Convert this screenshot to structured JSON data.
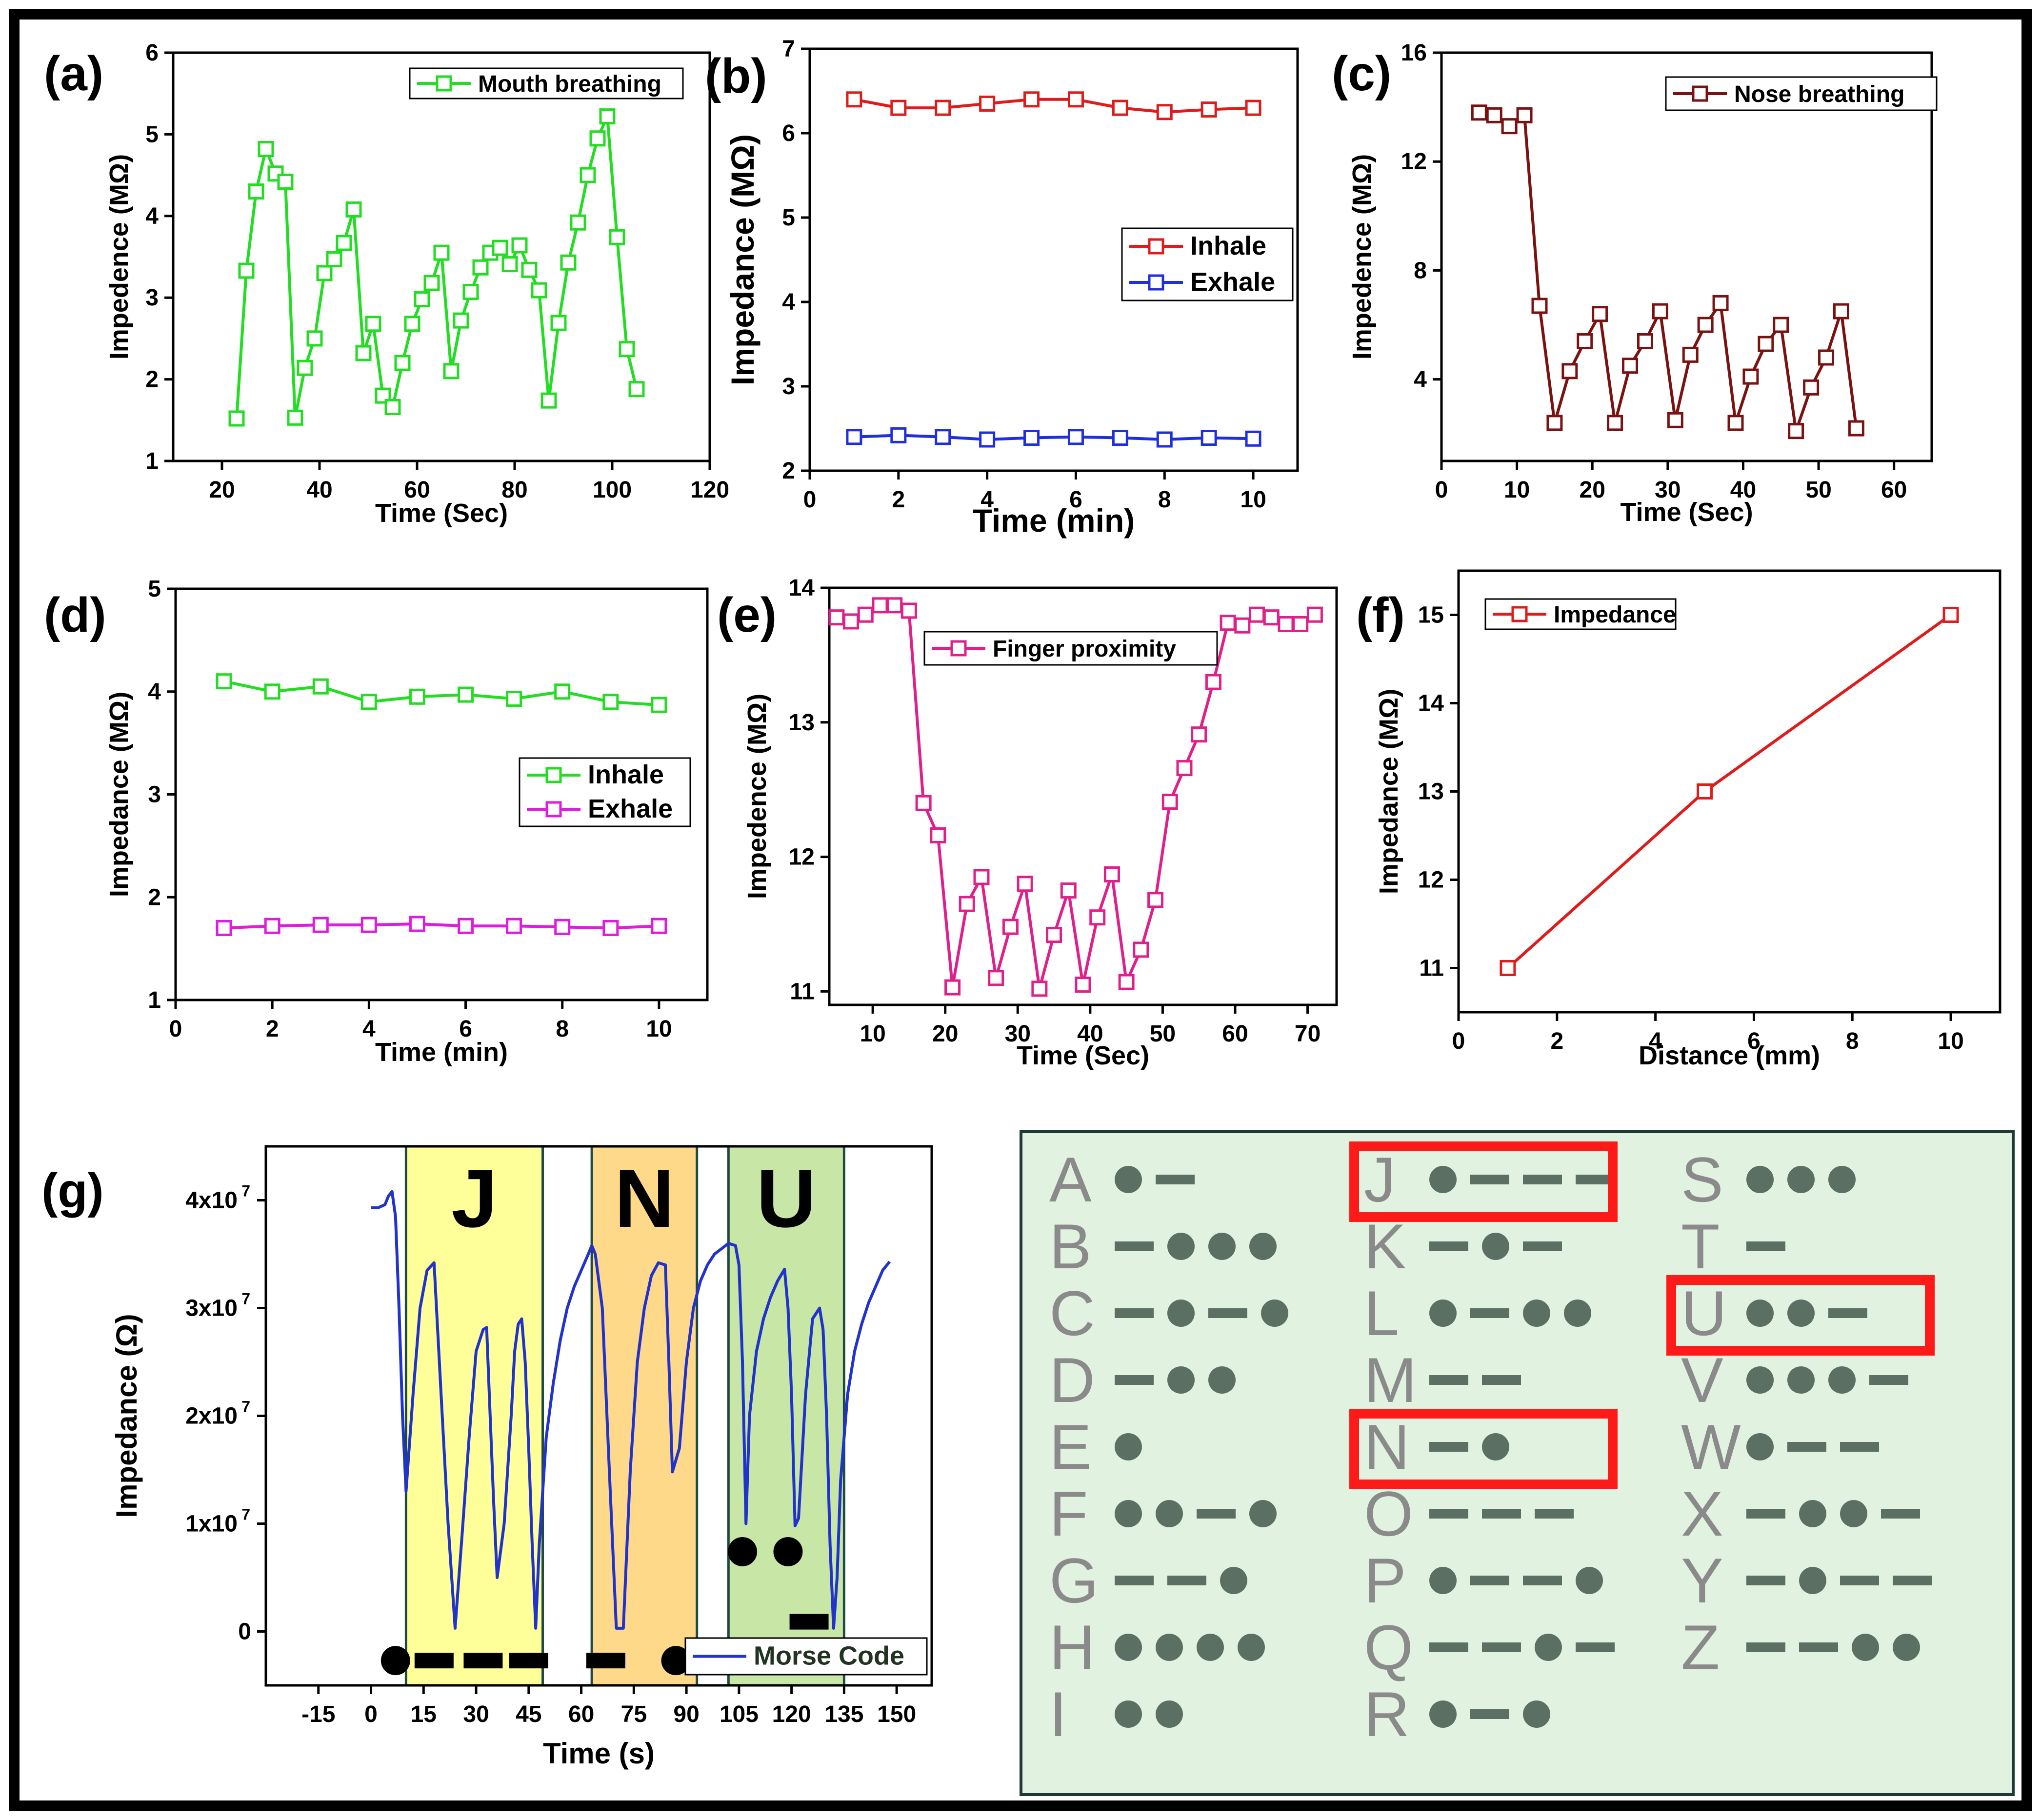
{
  "chart_data": [
    {
      "id": "a",
      "panel_label": "(a)",
      "type": "line",
      "xlabel": "Time (Sec)",
      "ylabel": "Impedence (MΩ)",
      "xlim": [
        10,
        120
      ],
      "ylim": [
        1,
        6
      ],
      "xticks": [
        20,
        40,
        60,
        80,
        100,
        120
      ],
      "yticks": [
        1,
        2,
        3,
        4,
        5,
        6
      ],
      "legend": "top-right",
      "series": [
        {
          "name": "Mouth breathing",
          "color": "#22dd22",
          "x": [
            23,
            25,
            27,
            29,
            31,
            33,
            35,
            37,
            39,
            41,
            43,
            45,
            47,
            49,
            51,
            53,
            55,
            57,
            59,
            61,
            63,
            65,
            67,
            69,
            71,
            73,
            75,
            77,
            79,
            81,
            83,
            85,
            87,
            89,
            91,
            93,
            95,
            97,
            99,
            101,
            103,
            105
          ],
          "y": [
            1.52,
            3.33,
            4.3,
            4.82,
            4.52,
            4.42,
            1.53,
            2.14,
            2.5,
            3.3,
            3.47,
            3.67,
            4.08,
            2.32,
            2.68,
            1.8,
            1.66,
            2.2,
            2.68,
            2.98,
            3.18,
            3.55,
            2.1,
            2.72,
            3.07,
            3.37,
            3.55,
            3.61,
            3.41,
            3.64,
            3.34,
            3.09,
            1.74,
            2.69,
            3.43,
            3.92,
            4.5,
            4.95,
            5.22,
            3.74,
            2.37,
            1.88
          ]
        }
      ]
    },
    {
      "id": "b",
      "panel_label": "(b)",
      "type": "line",
      "xlabel": "Time (min)",
      "ylabel": "Impedance (MΩ)",
      "xlim": [
        0,
        11
      ],
      "ylim": [
        2,
        7
      ],
      "xticks": [
        0,
        2,
        4,
        6,
        8,
        10
      ],
      "yticks": [
        2,
        3,
        4,
        5,
        6,
        7
      ],
      "legend": "center-right",
      "series": [
        {
          "name": "Inhale",
          "color": "#e01b1b",
          "x": [
            1,
            2,
            3,
            4,
            5,
            6,
            7,
            8,
            9,
            10
          ],
          "y": [
            6.4,
            6.3,
            6.3,
            6.35,
            6.4,
            6.4,
            6.3,
            6.25,
            6.28,
            6.3
          ]
        },
        {
          "name": "Exhale",
          "color": "#1f2fe0",
          "x": [
            1,
            2,
            3,
            4,
            5,
            6,
            7,
            8,
            9,
            10
          ],
          "y": [
            2.4,
            2.42,
            2.4,
            2.37,
            2.39,
            2.4,
            2.39,
            2.37,
            2.39,
            2.38
          ]
        }
      ]
    },
    {
      "id": "c",
      "panel_label": "(c)",
      "type": "line",
      "xlabel": "Time (Sec)",
      "ylabel": "Impedence (MΩ)",
      "xlim": [
        0,
        65
      ],
      "ylim": [
        1,
        16
      ],
      "xticks": [
        0,
        10,
        20,
        30,
        40,
        50,
        60
      ],
      "yticks": [
        4,
        8,
        12,
        16
      ],
      "legend": "top-right",
      "series": [
        {
          "name": "Nose breathing",
          "color": "#7a1212",
          "x": [
            5,
            7,
            9,
            11,
            13,
            15,
            17,
            19,
            21,
            23,
            25,
            27,
            29,
            31,
            33,
            35,
            37,
            39,
            41,
            43,
            45,
            47,
            49,
            51,
            53,
            55
          ],
          "y": [
            13.8,
            13.7,
            13.3,
            13.7,
            6.7,
            2.4,
            4.3,
            5.4,
            6.4,
            2.4,
            4.5,
            5.4,
            6.5,
            2.5,
            4.9,
            6.0,
            6.8,
            2.4,
            4.1,
            5.3,
            6.0,
            2.1,
            3.7,
            4.8,
            6.5,
            2.2
          ]
        }
      ]
    },
    {
      "id": "d",
      "panel_label": "(d)",
      "type": "line",
      "xlabel": "Time (min)",
      "ylabel": "Impedance (MΩ)",
      "xlim": [
        0,
        11
      ],
      "ylim": [
        1,
        5
      ],
      "xticks": [
        0,
        2,
        4,
        6,
        8,
        10
      ],
      "yticks": [
        1,
        2,
        3,
        4,
        5
      ],
      "legend": "center-right",
      "series": [
        {
          "name": "Inhale",
          "color": "#22dd22",
          "x": [
            1,
            2,
            3,
            4,
            5,
            6,
            7,
            8,
            9,
            10
          ],
          "y": [
            4.1,
            4.0,
            4.05,
            3.9,
            3.95,
            3.97,
            3.93,
            4.0,
            3.9,
            3.87
          ]
        },
        {
          "name": "Exhale",
          "color": "#e01be0",
          "x": [
            1,
            2,
            3,
            4,
            5,
            6,
            7,
            8,
            9,
            10
          ],
          "y": [
            1.7,
            1.72,
            1.73,
            1.73,
            1.74,
            1.72,
            1.72,
            1.71,
            1.7,
            1.72
          ]
        }
      ]
    },
    {
      "id": "e",
      "panel_label": "(e)",
      "type": "line",
      "xlabel": "Time (Sec)",
      "ylabel": "Impedence (MΩ)",
      "xlim": [
        4,
        74
      ],
      "ylim": [
        10.9,
        14
      ],
      "xticks": [
        10,
        20,
        30,
        40,
        50,
        60,
        70
      ],
      "yticks": [
        11,
        12,
        13,
        14
      ],
      "legend": "top-center",
      "series": [
        {
          "name": "Finger proximity",
          "color": "#e0208a",
          "x": [
            5,
            7,
            9,
            11,
            13,
            15,
            17,
            19,
            21,
            23,
            25,
            27,
            29,
            31,
            33,
            35,
            37,
            39,
            41,
            43,
            45,
            47,
            49,
            51,
            53,
            55,
            57,
            59,
            61,
            63,
            65,
            67,
            69,
            71
          ],
          "y": [
            13.78,
            13.75,
            13.8,
            13.87,
            13.87,
            13.83,
            12.4,
            12.16,
            11.03,
            11.65,
            11.85,
            11.1,
            11.48,
            11.8,
            11.02,
            11.42,
            11.75,
            11.05,
            11.55,
            11.87,
            11.07,
            11.31,
            11.68,
            12.41,
            12.66,
            12.91,
            13.3,
            13.74,
            13.72,
            13.8,
            13.78,
            13.73,
            13.73,
            13.8
          ]
        }
      ]
    },
    {
      "id": "f",
      "panel_label": "(f)",
      "type": "line",
      "xlabel": "Distance (mm)",
      "ylabel": "Impedance (MΩ)",
      "xlim": [
        0,
        11
      ],
      "ylim": [
        10.5,
        15.5
      ],
      "xticks": [
        0,
        2,
        4,
        6,
        8,
        10
      ],
      "yticks": [
        11,
        12,
        13,
        14,
        15
      ],
      "legend": "top-left",
      "series": [
        {
          "name": "Impedance",
          "color": "#e01b1b",
          "x": [
            1,
            5,
            10
          ],
          "y": [
            11,
            13,
            15
          ]
        }
      ]
    },
    {
      "id": "g",
      "panel_label": "(g)",
      "type": "line",
      "xlabel": "Time (s)",
      "ylabel": "Impedance (Ω)",
      "xlim": [
        -30,
        160
      ],
      "ylim": [
        -5000000,
        45000000
      ],
      "xticks": [
        -15,
        0,
        15,
        30,
        45,
        60,
        75,
        90,
        105,
        120,
        135,
        150
      ],
      "yticks": [
        0,
        10000000,
        20000000,
        30000000,
        40000000
      ],
      "yticklabels": [
        "0",
        "1x10",
        "2x10",
        "3x10",
        "4x10"
      ],
      "ytick_exponents": [
        "",
        "7",
        "7",
        "7",
        "7"
      ],
      "legend": "bottom-right",
      "series": [
        {
          "name": "Morse Code",
          "color": "#2233cc",
          "x": [
            0,
            2,
            4,
            5,
            6,
            7,
            8,
            9,
            10,
            12,
            14,
            16,
            18,
            20,
            22,
            24,
            26,
            28,
            30,
            32,
            33,
            34,
            35,
            36,
            38,
            40,
            41,
            42,
            43,
            44,
            45,
            46,
            47,
            48,
            50,
            52,
            54,
            56,
            58,
            60,
            62,
            63,
            64,
            66,
            68,
            70,
            72,
            74,
            76,
            78,
            80,
            82,
            84,
            85,
            86,
            88,
            90,
            92,
            94,
            96,
            98,
            100,
            102,
            104,
            105,
            106,
            107,
            108,
            110,
            112,
            114,
            116,
            118,
            119,
            120,
            121,
            122,
            124,
            126,
            128,
            129,
            130,
            131,
            132,
            133,
            134,
            136,
            138,
            140,
            142,
            144,
            146,
            148
          ],
          "y": [
            39300000,
            39300000,
            39600000,
            40400000,
            40800000,
            38500000,
            30000000,
            20000000,
            13000000,
            22000000,
            30000000,
            33500000,
            34200000,
            22000000,
            10000000,
            300000,
            9000000,
            18000000,
            26000000,
            28000000,
            28200000,
            20000000,
            12000000,
            5000000,
            10000000,
            20000000,
            26000000,
            28500000,
            29000000,
            25000000,
            17000000,
            8000000,
            300000,
            8000000,
            18000000,
            23000000,
            27000000,
            30000000,
            32000000,
            33500000,
            35000000,
            35800000,
            35000000,
            30000000,
            15000000,
            300000,
            300000,
            15000000,
            25000000,
            30000000,
            33000000,
            34200000,
            34000000,
            25000000,
            14800000,
            17000000,
            25000000,
            30000000,
            32500000,
            34000000,
            35000000,
            35500000,
            36000000,
            35800000,
            34000000,
            25000000,
            10000000,
            20000000,
            26000000,
            29000000,
            31000000,
            32500000,
            33600000,
            30000000,
            22000000,
            9800000,
            10500000,
            22000000,
            29000000,
            30000000,
            28000000,
            20000000,
            8000000,
            300000,
            5000000,
            14000000,
            22000000,
            26000000,
            28500000,
            30500000,
            32000000,
            33500000,
            34300000
          ]
        }
      ],
      "regions": [
        {
          "label": "J",
          "x0": 10,
          "x1": 49,
          "color": "#ffff99"
        },
        {
          "label": "N",
          "x0": 63,
          "x1": 93,
          "color": "#ffd98a"
        },
        {
          "label": "U",
          "x0": 102,
          "x1": 135,
          "color": "#c8e6a5"
        }
      ],
      "symbols": [
        {
          "kind": "dot",
          "x": 7,
          "y": -2700000
        },
        {
          "kind": "dash",
          "x": 18,
          "y": -2700000
        },
        {
          "kind": "dash",
          "x": 32,
          "y": -2700000
        },
        {
          "kind": "dash",
          "x": 45,
          "y": -2700000
        },
        {
          "kind": "dash",
          "x": 67,
          "y": -2700000
        },
        {
          "kind": "dot",
          "x": 87,
          "y": -2700000
        },
        {
          "kind": "dot",
          "x": 106,
          "y": 7400000
        },
        {
          "kind": "dot",
          "x": 119,
          "y": 7400000
        },
        {
          "kind": "dash",
          "x": 125,
          "y": 900000
        }
      ]
    }
  ],
  "morse_alphabet": {
    "columns": [
      [
        {
          "letter": "A",
          "code": ".-"
        },
        {
          "letter": "B",
          "code": "-..."
        },
        {
          "letter": "C",
          "code": "-.-."
        },
        {
          "letter": "D",
          "code": "-.."
        },
        {
          "letter": "E",
          "code": "."
        },
        {
          "letter": "F",
          "code": "..-."
        },
        {
          "letter": "G",
          "code": "--."
        },
        {
          "letter": "H",
          "code": "...."
        },
        {
          "letter": "I",
          "code": ".."
        }
      ],
      [
        {
          "letter": "J",
          "code": ".---",
          "highlight": true
        },
        {
          "letter": "K",
          "code": "-.-"
        },
        {
          "letter": "L",
          "code": ".-.."
        },
        {
          "letter": "M",
          "code": "--"
        },
        {
          "letter": "N",
          "code": "-.",
          "highlight": true
        },
        {
          "letter": "O",
          "code": "---"
        },
        {
          "letter": "P",
          "code": ".--."
        },
        {
          "letter": "Q",
          "code": "--.-"
        },
        {
          "letter": "R",
          "code": ".-."
        }
      ],
      [
        {
          "letter": "S",
          "code": "..."
        },
        {
          "letter": "T",
          "code": "-"
        },
        {
          "letter": "U",
          "code": "..-",
          "highlight": true
        },
        {
          "letter": "V",
          "code": "...-"
        },
        {
          "letter": "W",
          "code": ".--"
        },
        {
          "letter": "X",
          "code": "-..-"
        },
        {
          "letter": "Y",
          "code": "-.--"
        },
        {
          "letter": "Z",
          "code": "--.."
        }
      ]
    ],
    "highlight_color": "#ff1a1a",
    "background_color": "#e1f2e1"
  }
}
